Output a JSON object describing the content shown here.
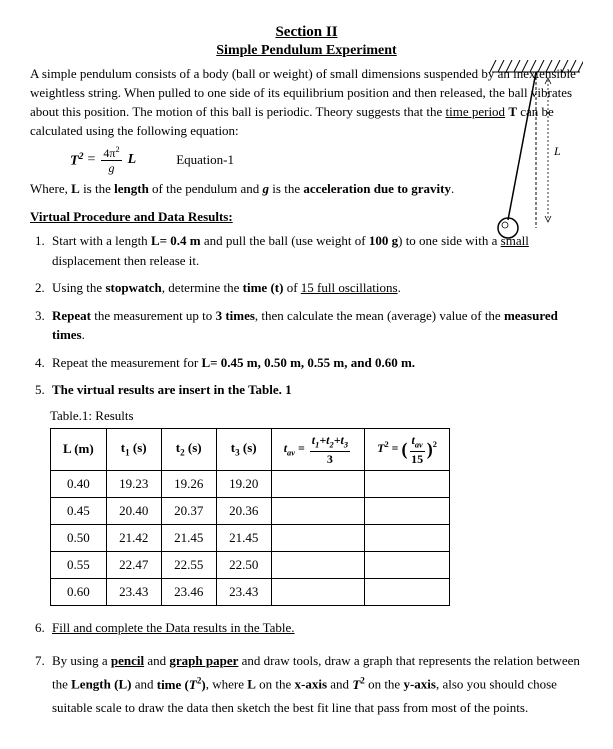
{
  "header": {
    "section": "Section II",
    "subtitle": "Simple Pendulum Experiment"
  },
  "intro": {
    "text_pre": "A simple pendulum consists of a body (ball or weight) of small dimensions suspended by an inextensible weightless string. When pulled to one side of its equilibrium position and then released, the ball vibrates about this position. The motion of this ball is periodic. Theory suggests that the ",
    "time_period": "time period",
    "after_tp": " T can be calculated using the following equation:"
  },
  "equation": {
    "lhs": "T",
    "num": "4π",
    "den": "g",
    "rhs": "L",
    "label": "Equation-1"
  },
  "where_text": {
    "pre": "Where, ",
    "L": "L",
    "mid1": " is the ",
    "length": "length",
    "mid2": " of the pendulum and ",
    "g": "g",
    "mid3": " is the ",
    "accel": "acceleration due to gravity",
    "end": "."
  },
  "vp_title": "Virtual Procedure and Data Results:",
  "steps": [
    {
      "html": "Start with a length <b>L= 0.4 m</b> and pull the ball (use weight of <b>100 g</b>) to one side with a <span class='under'>small</span> displacement then release it."
    },
    {
      "html": "Using the <b>stopwatch</b>, determine the <b>time (t)</b> of <span class='under'>15 full oscillations</span>."
    },
    {
      "html": "<b>Repeat</b> the measurement up to <b>3 times</b>, then calculate the mean (average) value of the <b>measured times</b>."
    },
    {
      "html": "Repeat the measurement for <b>L= 0.45 m, 0.50 m, 0.55 m, and 0.60 m.</b>"
    },
    {
      "html": "<b>The virtual results are insert in the Table. 1</b>"
    }
  ],
  "table": {
    "caption": "Table.1: Results",
    "headers": {
      "L": "L (m)",
      "t1": "t₁ (s)",
      "t2": "t₂ (s)",
      "t3": "t₃ (s)"
    },
    "rows": [
      {
        "L": "0.40",
        "t1": "19.23",
        "t2": "19.26",
        "t3": "19.20",
        "tav": "",
        "T2": ""
      },
      {
        "L": "0.45",
        "t1": "20.40",
        "t2": "20.37",
        "t3": "20.36",
        "tav": "",
        "T2": ""
      },
      {
        "L": "0.50",
        "t1": "21.42",
        "t2": "21.45",
        "t3": "21.45",
        "tav": "",
        "T2": ""
      },
      {
        "L": "0.55",
        "t1": "22.47",
        "t2": "22.55",
        "t3": "22.50",
        "tav": "",
        "T2": ""
      },
      {
        "L": "0.60",
        "t1": "23.43",
        "t2": "23.46",
        "t3": "23.43",
        "tav": "",
        "T2": ""
      }
    ]
  },
  "lower_steps": [
    {
      "html": "<span class='under'>Fill and complete the Data results in the Table.</span>"
    },
    {
      "html": "By using a <span class='under bold'>pencil</span> and <span class='under bold'>graph paper</span> and draw tools, draw a graph that represents the relation between the <b>Length (L)</b> and <b>time (<i>T</i><span class='sup'>2</span>)</b>, where <b>L</b> on the <b>x-axis</b> and <b><i>T</i><span class='sup'>2</span></b>  on the <b>y-axis</b>, also you should chose suitable scale to draw the data then sketch the best fit line that pass from most of the points."
    }
  ],
  "diagram": {
    "label_L": "L"
  }
}
